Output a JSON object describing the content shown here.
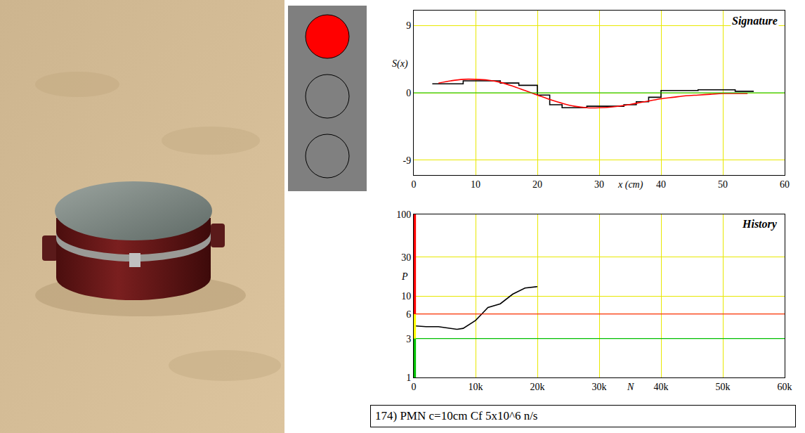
{
  "indicator": {
    "lights": [
      "#ff0000",
      "#808080",
      "#808080"
    ]
  },
  "caption": "174) PMN  c=10cm  Cf 5x10^6 n/s",
  "chart_data": [
    {
      "type": "line",
      "title": "Signature",
      "xlabel": "x (cm)",
      "ylabel": "S(x)",
      "xlim": [
        0,
        60
      ],
      "xticks": [
        0,
        10,
        20,
        30,
        40,
        50,
        60
      ],
      "ylim": [
        -11,
        11
      ],
      "yticks": [
        -9,
        0,
        9
      ],
      "grid": true,
      "reference_lines": [
        {
          "value": 0,
          "color": "#00c000"
        }
      ],
      "series": [
        {
          "color": "#000000",
          "line_style": "step",
          "x": [
            3,
            8,
            14,
            17,
            20,
            22,
            24,
            28,
            34,
            36,
            38,
            40,
            46,
            52,
            55
          ],
          "values": [
            1.2,
            1.6,
            1.3,
            1.0,
            -0.3,
            -1.6,
            -2.0,
            -1.8,
            -1.6,
            -1.2,
            -0.6,
            0.3,
            0.4,
            0.2,
            0.2
          ]
        },
        {
          "color": "#ff0000",
          "line_style": "smooth",
          "x": [
            4,
            6,
            8,
            10,
            12,
            14,
            16,
            18,
            20,
            22,
            24,
            26,
            28,
            30,
            32,
            34,
            36,
            38,
            40,
            42,
            44,
            46,
            48,
            50,
            52,
            54
          ],
          "values": [
            1.3,
            1.6,
            1.8,
            1.8,
            1.7,
            1.4,
            0.9,
            0.3,
            -0.3,
            -0.9,
            -1.4,
            -1.8,
            -2.0,
            -2.0,
            -1.9,
            -1.7,
            -1.4,
            -1.1,
            -0.8,
            -0.6,
            -0.4,
            -0.3,
            -0.2,
            -0.1,
            -0.1,
            -0.1
          ]
        }
      ]
    },
    {
      "type": "line",
      "title": "History",
      "xlabel": "N",
      "ylabel": "P",
      "log": "y",
      "xlim": [
        0,
        60000
      ],
      "xticks": [
        0,
        {
          "value": 10000,
          "label": "10k"
        },
        {
          "value": 20000,
          "label": "20k"
        },
        {
          "value": 30000,
          "label": "30k"
        },
        {
          "value": 40000,
          "label": "40k"
        },
        {
          "value": 50000,
          "label": "50k"
        },
        {
          "value": 60000,
          "label": "60k"
        }
      ],
      "ylim": [
        1,
        100
      ],
      "yticks": [
        1,
        3,
        6,
        10,
        30,
        100
      ],
      "grid": true,
      "reference_lines": [
        {
          "value": 6,
          "color": "#ff0000"
        },
        {
          "value": 3,
          "color": "#00c000"
        }
      ],
      "series": [
        {
          "color": "#000000",
          "x": [
            0,
            2000,
            4000,
            6000,
            7000,
            8000,
            10000,
            11000,
            12000,
            14000,
            16000,
            18000,
            20000
          ],
          "values": [
            4.3,
            4.2,
            4.2,
            4.0,
            3.9,
            4.0,
            5.0,
            6.0,
            7.2,
            8.0,
            10.5,
            12.5,
            13.0
          ]
        }
      ]
    }
  ]
}
